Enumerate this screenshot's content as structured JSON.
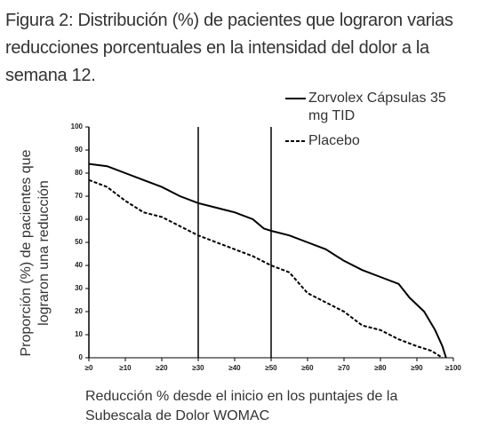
{
  "chart_data": {
    "type": "line",
    "title": "Figura 2: Distribución (%) de pacientes que lograron varias reducciones porcentuales en la intensidad del dolor a la semana 12.",
    "x_label": "Reducción % desde el inicio en los puntajes de la Subescala de Dolor WOMAC",
    "y_label": "Proporción (%) de pacientes que lograron una reducción",
    "xlim": [
      0,
      100
    ],
    "ylim": [
      0,
      100
    ],
    "xticks": [
      {
        "value": 0,
        "label": "≥0"
      },
      {
        "value": 10,
        "label": "≥10"
      },
      {
        "value": 20,
        "label": "≥20"
      },
      {
        "value": 30,
        "label": "≥30"
      },
      {
        "value": 40,
        "label": "≥40"
      },
      {
        "value": 50,
        "label": "≥50"
      },
      {
        "value": 60,
        "label": "≥60"
      },
      {
        "value": 70,
        "label": "≥70"
      },
      {
        "value": 80,
        "label": "≥80"
      },
      {
        "value": 90,
        "label": "≥90"
      },
      {
        "value": 100,
        "label": "≥100"
      }
    ],
    "yticks": [
      0,
      10,
      20,
      30,
      40,
      50,
      60,
      70,
      80,
      90,
      100
    ],
    "reference_lines_x": [
      0,
      30,
      50
    ],
    "series": [
      {
        "name": "Zorvolex Cápsulas 35 mg TID",
        "color": "#000000",
        "line_style": "solid",
        "x": [
          0,
          5,
          10,
          15,
          20,
          25,
          30,
          35,
          40,
          45,
          48,
          50,
          55,
          60,
          65,
          70,
          75,
          80,
          85,
          88,
          92,
          95,
          97,
          98
        ],
        "values": [
          84,
          83,
          80,
          77,
          74,
          70,
          67,
          65,
          63,
          60,
          56,
          55,
          53,
          50,
          47,
          42,
          38,
          35,
          32,
          26,
          20,
          12,
          5,
          0
        ]
      },
      {
        "name": "Placebo",
        "color": "#000000",
        "line_style": "dashed",
        "x": [
          0,
          5,
          10,
          15,
          20,
          25,
          30,
          35,
          40,
          45,
          50,
          55,
          60,
          65,
          70,
          75,
          80,
          85,
          90,
          94,
          97
        ],
        "values": [
          77,
          74,
          68,
          63,
          61,
          57,
          53,
          50,
          47,
          44,
          40,
          37,
          28,
          24,
          20,
          14,
          12,
          8,
          5,
          3,
          0
        ]
      }
    ]
  }
}
